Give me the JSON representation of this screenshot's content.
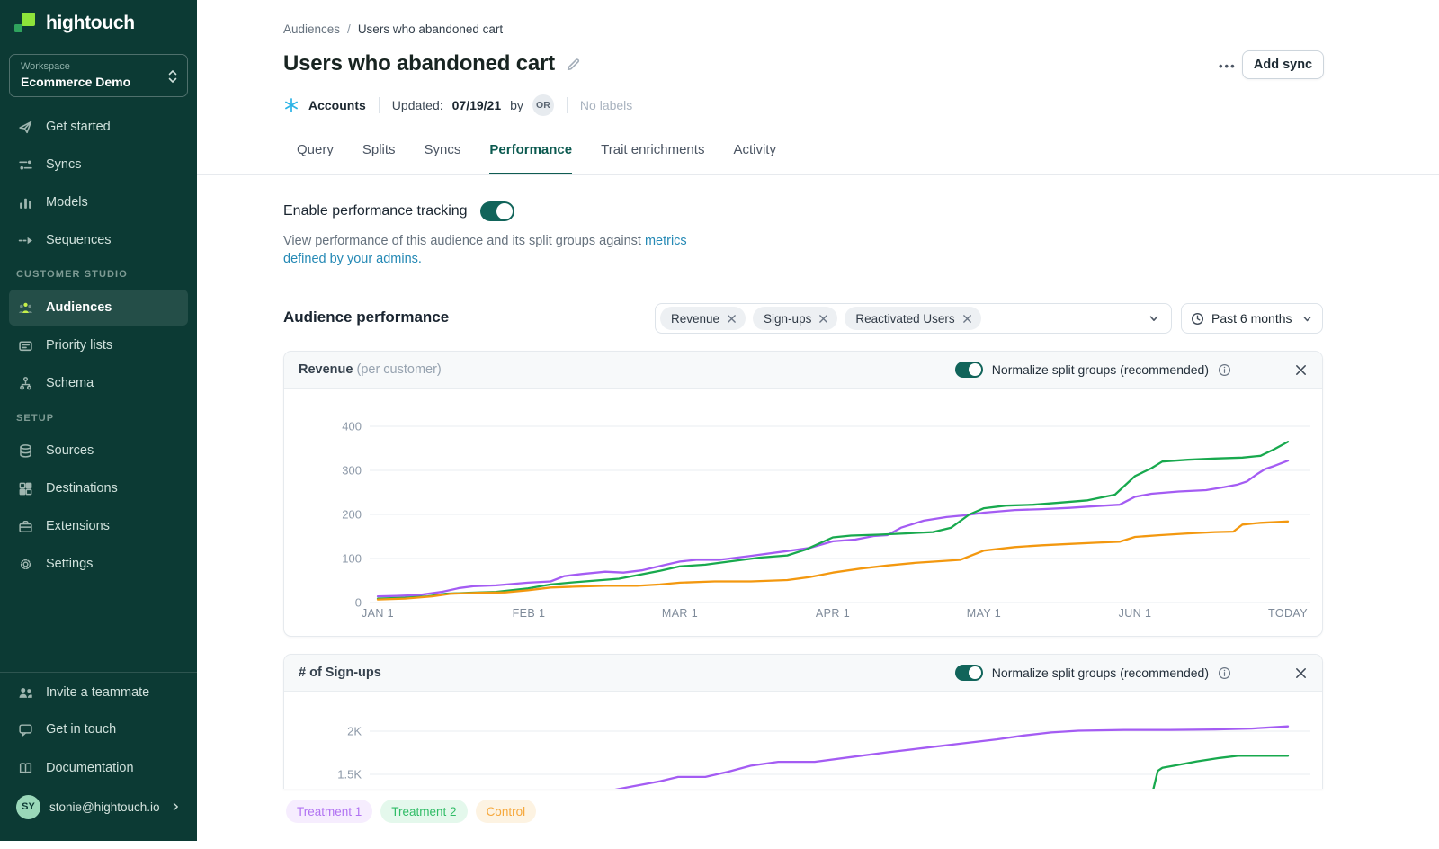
{
  "colors": {
    "accent_teal": "#11645a",
    "link": "#2589b5",
    "snowflake_blue": "#2bb3e6",
    "brand_lime": "#8ee33a",
    "sidebar_bg": "#0c3a34"
  },
  "sidebar": {
    "logo_text": "hightouch",
    "workspace": {
      "label": "Workspace",
      "value": "Ecommerce Demo"
    },
    "nav": [
      {
        "label": "Get started"
      },
      {
        "label": "Syncs"
      },
      {
        "label": "Models"
      },
      {
        "label": "Sequences"
      }
    ],
    "sections": [
      {
        "title": "CUSTOMER STUDIO",
        "items": [
          {
            "label": "Audiences",
            "active": true
          },
          {
            "label": "Priority lists"
          },
          {
            "label": "Schema"
          }
        ]
      },
      {
        "title": "SETUP",
        "items": [
          {
            "label": "Sources"
          },
          {
            "label": "Destinations"
          },
          {
            "label": "Extensions"
          },
          {
            "label": "Settings"
          }
        ]
      }
    ],
    "footer": [
      {
        "label": "Invite a teammate"
      },
      {
        "label": "Get in touch"
      },
      {
        "label": "Documentation"
      }
    ],
    "account": {
      "initials": "SY",
      "email": "stonie@hightouch.io"
    }
  },
  "header": {
    "breadcrumb_parent": "Audiences",
    "breadcrumb_sep": "/",
    "breadcrumb_current": "Users who abandoned cart",
    "title": "Users who abandoned cart",
    "source_label": "Accounts",
    "updated_prefix": "Updated:",
    "updated_date": "07/19/21",
    "updated_by_word": "by",
    "updated_by_initials": "OR",
    "labels_text": "No labels",
    "more_label": "•••",
    "add_sync_label": "Add sync"
  },
  "tabs": {
    "items": [
      "Query",
      "Splits",
      "Syncs",
      "Performance",
      "Trait enrichments",
      "Activity"
    ],
    "active": "Performance"
  },
  "performance": {
    "toggle_label": "Enable performance tracking",
    "description_plain": "View performance of this audience and its split groups against ",
    "description_link": "metrics defined by your admins.",
    "section_title": "Audience performance",
    "metric_chips": [
      "Revenue",
      "Sign-ups",
      "Reactivated Users"
    ],
    "time_range": "Past 6 months",
    "normalize_label": "Normalize split groups (recommended)"
  },
  "legend": {
    "items": [
      {
        "label": "Treatment 1",
        "color": "#b173f2",
        "bg": "#f6edfe"
      },
      {
        "label": "Treatment 2",
        "color": "#2fbc66",
        "bg": "#e4f8ec"
      },
      {
        "label": "Control",
        "color": "#f6a83c",
        "bg": "#fdf3e2"
      }
    ]
  },
  "chart_data": [
    {
      "type": "line",
      "title": "Revenue",
      "title_suffix": "(per customer)",
      "normalize_on": true,
      "x_ticks": [
        {
          "label": "JAN 1",
          "t": 0
        },
        {
          "label": "FEB 1",
          "t": 0.166
        },
        {
          "label": "MAR 1",
          "t": 0.332
        },
        {
          "label": "APR 1",
          "t": 0.5
        },
        {
          "label": "MAY 1",
          "t": 0.666
        },
        {
          "label": "JUN 1",
          "t": 0.832
        },
        {
          "label": "TODAY",
          "t": 1
        }
      ],
      "y_ticks": [
        {
          "label": "0",
          "value": 0
        },
        {
          "label": "100",
          "value": 100
        },
        {
          "label": "200",
          "value": 200
        },
        {
          "label": "300",
          "value": 300
        },
        {
          "label": "400",
          "value": 400
        }
      ],
      "ylim": [
        0,
        440
      ],
      "series": [
        {
          "name": "Treatment 1",
          "color": "#a45cf3",
          "points": [
            [
              0,
              14
            ],
            [
              0.02,
              15
            ],
            [
              0.045,
              17
            ],
            [
              0.07,
              24
            ],
            [
              0.09,
              33
            ],
            [
              0.105,
              37
            ],
            [
              0.13,
              39
            ],
            [
              0.165,
              45
            ],
            [
              0.19,
              48
            ],
            [
              0.205,
              60
            ],
            [
              0.225,
              65
            ],
            [
              0.25,
              70
            ],
            [
              0.27,
              68
            ],
            [
              0.29,
              73
            ],
            [
              0.315,
              85
            ],
            [
              0.332,
              93
            ],
            [
              0.35,
              97
            ],
            [
              0.375,
              97
            ],
            [
              0.41,
              106
            ],
            [
              0.45,
              117
            ],
            [
              0.475,
              124
            ],
            [
              0.5,
              139
            ],
            [
              0.525,
              143
            ],
            [
              0.545,
              151
            ],
            [
              0.56,
              153
            ],
            [
              0.575,
              170
            ],
            [
              0.6,
              186
            ],
            [
              0.625,
              194
            ],
            [
              0.645,
              198
            ],
            [
              0.666,
              204
            ],
            [
              0.7,
              210
            ],
            [
              0.73,
              212
            ],
            [
              0.76,
              215
            ],
            [
              0.79,
              219
            ],
            [
              0.815,
              222
            ],
            [
              0.832,
              240
            ],
            [
              0.85,
              247
            ],
            [
              0.88,
              252
            ],
            [
              0.91,
              255
            ],
            [
              0.93,
              262
            ],
            [
              0.945,
              268
            ],
            [
              0.955,
              275
            ],
            [
              0.965,
              290
            ],
            [
              0.975,
              303
            ],
            [
              0.985,
              310
            ],
            [
              1,
              322
            ]
          ]
        },
        {
          "name": "Treatment 2",
          "color": "#18a94e",
          "points": [
            [
              0,
              9
            ],
            [
              0.03,
              11
            ],
            [
              0.055,
              14
            ],
            [
              0.075,
              20
            ],
            [
              0.1,
              22
            ],
            [
              0.13,
              24
            ],
            [
              0.165,
              32
            ],
            [
              0.19,
              41
            ],
            [
              0.215,
              46
            ],
            [
              0.24,
              50
            ],
            [
              0.265,
              54
            ],
            [
              0.285,
              62
            ],
            [
              0.31,
              72
            ],
            [
              0.332,
              82
            ],
            [
              0.36,
              86
            ],
            [
              0.39,
              94
            ],
            [
              0.42,
              102
            ],
            [
              0.45,
              107
            ],
            [
              0.47,
              120
            ],
            [
              0.5,
              148
            ],
            [
              0.52,
              152
            ],
            [
              0.55,
              154
            ],
            [
              0.58,
              157
            ],
            [
              0.61,
              160
            ],
            [
              0.63,
              170
            ],
            [
              0.65,
              200
            ],
            [
              0.666,
              214
            ],
            [
              0.69,
              220
            ],
            [
              0.72,
              222
            ],
            [
              0.75,
              227
            ],
            [
              0.78,
              232
            ],
            [
              0.81,
              245
            ],
            [
              0.832,
              287
            ],
            [
              0.85,
              305
            ],
            [
              0.862,
              320
            ],
            [
              0.89,
              324
            ],
            [
              0.92,
              327
            ],
            [
              0.95,
              329
            ],
            [
              0.97,
              333
            ],
            [
              0.985,
              348
            ],
            [
              1,
              365
            ]
          ]
        },
        {
          "name": "Control",
          "color": "#f3980f",
          "points": [
            [
              0,
              7
            ],
            [
              0.03,
              9
            ],
            [
              0.06,
              14
            ],
            [
              0.08,
              20
            ],
            [
              0.11,
              22
            ],
            [
              0.14,
              23
            ],
            [
              0.165,
              28
            ],
            [
              0.19,
              34
            ],
            [
              0.215,
              36
            ],
            [
              0.25,
              38
            ],
            [
              0.285,
              38
            ],
            [
              0.31,
              41
            ],
            [
              0.332,
              45
            ],
            [
              0.37,
              48
            ],
            [
              0.41,
              48
            ],
            [
              0.45,
              51
            ],
            [
              0.475,
              58
            ],
            [
              0.5,
              68
            ],
            [
              0.53,
              77
            ],
            [
              0.56,
              84
            ],
            [
              0.59,
              90
            ],
            [
              0.62,
              94
            ],
            [
              0.64,
              97
            ],
            [
              0.666,
              118
            ],
            [
              0.7,
              126
            ],
            [
              0.73,
              130
            ],
            [
              0.76,
              133
            ],
            [
              0.79,
              136
            ],
            [
              0.815,
              138
            ],
            [
              0.832,
              149
            ],
            [
              0.86,
              153
            ],
            [
              0.89,
              157
            ],
            [
              0.92,
              160
            ],
            [
              0.94,
              161
            ],
            [
              0.95,
              177
            ],
            [
              0.97,
              181
            ],
            [
              1,
              184
            ]
          ]
        }
      ]
    },
    {
      "type": "line",
      "title": "# of Sign-ups",
      "normalize_on": true,
      "x_ticks": [],
      "y_ticks": [
        {
          "label": "2K",
          "value": 2000
        },
        {
          "label": "1.5K",
          "value": 1500
        }
      ],
      "ylim_visible": [
        1300,
        2200
      ],
      "series": [
        {
          "name": "Treatment 1",
          "color": "#a45cf3",
          "points": [
            [
              0.255,
              1310
            ],
            [
              0.28,
              1360
            ],
            [
              0.31,
              1420
            ],
            [
              0.33,
              1470
            ],
            [
              0.36,
              1470
            ],
            [
              0.385,
              1530
            ],
            [
              0.41,
              1600
            ],
            [
              0.44,
              1645
            ],
            [
              0.48,
              1645
            ],
            [
              0.52,
              1700
            ],
            [
              0.56,
              1755
            ],
            [
              0.6,
              1805
            ],
            [
              0.64,
              1855
            ],
            [
              0.68,
              1905
            ],
            [
              0.71,
              1950
            ],
            [
              0.74,
              1985
            ],
            [
              0.77,
              2005
            ],
            [
              0.82,
              2015
            ],
            [
              0.87,
              2015
            ],
            [
              0.92,
              2020
            ],
            [
              0.96,
              2030
            ],
            [
              1,
              2055
            ]
          ]
        },
        {
          "name": "Treatment 2",
          "color": "#18a94e",
          "points": [
            [
              0.852,
              1320
            ],
            [
              0.857,
              1540
            ],
            [
              0.862,
              1575
            ],
            [
              0.875,
              1600
            ],
            [
              0.9,
              1650
            ],
            [
              0.925,
              1690
            ],
            [
              0.945,
              1715
            ],
            [
              1,
              1715
            ]
          ]
        }
      ]
    }
  ]
}
